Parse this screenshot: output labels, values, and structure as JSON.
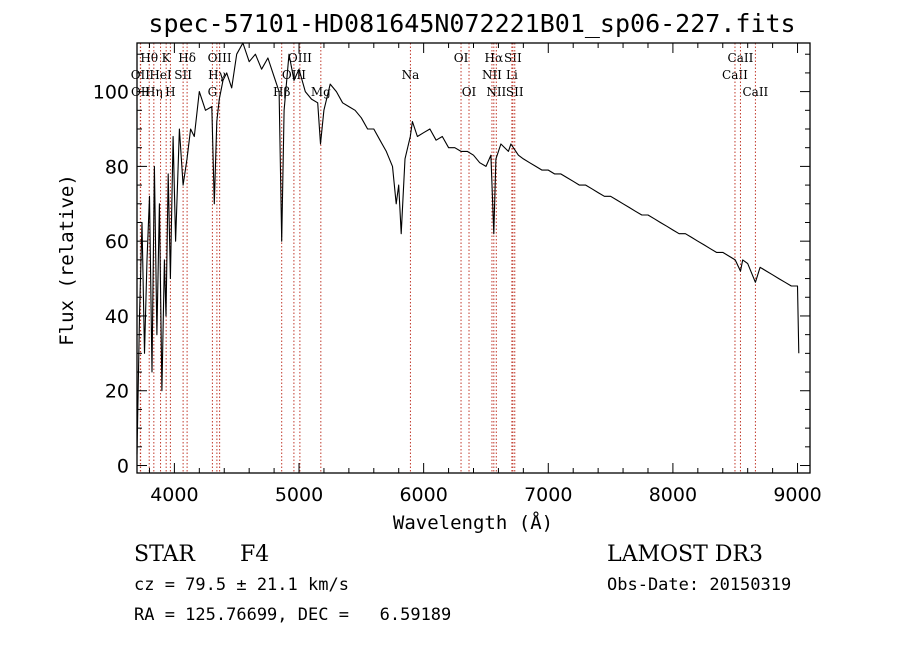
{
  "chart_data": {
    "type": "line",
    "title": "spec-57101-HD081645N072221B01_sp06-227.fits",
    "xlabel": "Wavelength (Å)",
    "ylabel": "Flux (relative)",
    "xlim": [
      3700,
      9100
    ],
    "ylim": [
      -2,
      113
    ],
    "xticks": [
      "4000",
      "5000",
      "6000",
      "7000",
      "8000",
      "9000"
    ],
    "yticks": [
      "0",
      "20",
      "40",
      "60",
      "80",
      "100"
    ],
    "series": [
      {
        "name": "flux",
        "x": [
          3700,
          3720,
          3740,
          3760,
          3780,
          3800,
          3820,
          3840,
          3860,
          3880,
          3900,
          3920,
          3933,
          3950,
          3968,
          3990,
          4010,
          4040,
          4070,
          4101,
          4130,
          4160,
          4200,
          4250,
          4300,
          4320,
          4340,
          4360,
          4390,
          4420,
          4460,
          4500,
          4550,
          4600,
          4650,
          4700,
          4750,
          4800,
          4840,
          4861,
          4880,
          4920,
          4960,
          5000,
          5050,
          5100,
          5150,
          5172,
          5200,
          5250,
          5300,
          5350,
          5400,
          5450,
          5500,
          5550,
          5600,
          5650,
          5700,
          5750,
          5780,
          5800,
          5820,
          5850,
          5893,
          5910,
          5950,
          6000,
          6050,
          6100,
          6150,
          6200,
          6250,
          6300,
          6350,
          6400,
          6450,
          6500,
          6540,
          6563,
          6580,
          6620,
          6680,
          6700,
          6760,
          6800,
          6850,
          6900,
          6950,
          7000,
          7050,
          7100,
          7150,
          7200,
          7250,
          7300,
          7350,
          7400,
          7450,
          7500,
          7550,
          7600,
          7650,
          7700,
          7750,
          7800,
          7850,
          7900,
          7950,
          8000,
          8050,
          8100,
          8150,
          8200,
          8250,
          8300,
          8350,
          8400,
          8450,
          8500,
          8542,
          8560,
          8600,
          8662,
          8700,
          8750,
          8800,
          8850,
          8900,
          8950,
          9000,
          9010
        ],
        "values": [
          3,
          40,
          65,
          30,
          55,
          72,
          25,
          80,
          35,
          70,
          20,
          55,
          40,
          78,
          50,
          88,
          60,
          90,
          75,
          82,
          90,
          88,
          100,
          95,
          96,
          70,
          92,
          98,
          103,
          105,
          101,
          110,
          113,
          108,
          110,
          106,
          109,
          104,
          100,
          60,
          95,
          110,
          103,
          106,
          100,
          98,
          97,
          86,
          95,
          102,
          100,
          97,
          96,
          95,
          93,
          90,
          90,
          87,
          84,
          80,
          70,
          75,
          62,
          82,
          88,
          92,
          88,
          89,
          90,
          87,
          88,
          85,
          85,
          84,
          84,
          83,
          81,
          80,
          83,
          62,
          82,
          86,
          84,
          86,
          83,
          82,
          81,
          80,
          79,
          79,
          78,
          78,
          77,
          76,
          75,
          75,
          74,
          73,
          72,
          72,
          71,
          70,
          69,
          68,
          67,
          67,
          66,
          65,
          64,
          63,
          62,
          62,
          61,
          60,
          59,
          58,
          57,
          57,
          56,
          55,
          52,
          55,
          54,
          49,
          53,
          52,
          51,
          50,
          49,
          48,
          48,
          30
        ]
      }
    ],
    "line_markers": [
      {
        "name": "OII",
        "wavelength": 3727,
        "row": 2
      },
      {
        "name": "OII",
        "wavelength": 3729,
        "row": 3
      },
      {
        "name": "Hθ",
        "wavelength": 3798,
        "row": 1
      },
      {
        "name": "Hη",
        "wavelength": 3835,
        "row": 3
      },
      {
        "name": "HeI",
        "wavelength": 3889,
        "row": 2
      },
      {
        "name": "K",
        "wavelength": 3934,
        "row": 1
      },
      {
        "name": "H",
        "wavelength": 3968,
        "row": 3
      },
      {
        "name": "SII",
        "wavelength": 4070,
        "row": 2
      },
      {
        "name": "Hδ",
        "wavelength": 4102,
        "row": 1
      },
      {
        "name": "G",
        "wavelength": 4305,
        "row": 3
      },
      {
        "name": "Hγ",
        "wavelength": 4341,
        "row": 2
      },
      {
        "name": "OIII",
        "wavelength": 4363,
        "row": 1
      },
      {
        "name": "Hβ",
        "wavelength": 4861,
        "row": 3
      },
      {
        "name": "OIII",
        "wavelength": 4959,
        "row": 2
      },
      {
        "name": "OIII",
        "wavelength": 5007,
        "row": 1
      },
      {
        "name": "Mg",
        "wavelength": 5175,
        "row": 3
      },
      {
        "name": "Na",
        "wavelength": 5894,
        "row": 2
      },
      {
        "name": "OI",
        "wavelength": 6300,
        "row": 1
      },
      {
        "name": "OI",
        "wavelength": 6364,
        "row": 3
      },
      {
        "name": "NII",
        "wavelength": 6548,
        "row": 2
      },
      {
        "name": "Hα",
        "wavelength": 6563,
        "row": 1
      },
      {
        "name": "NII",
        "wavelength": 6583,
        "row": 3
      },
      {
        "name": "Li",
        "wavelength": 6708,
        "row": 2
      },
      {
        "name": "SII",
        "wavelength": 6716,
        "row": 1
      },
      {
        "name": "SII",
        "wavelength": 6731,
        "row": 3
      },
      {
        "name": "CaII",
        "wavelength": 8498,
        "row": 2
      },
      {
        "name": "CaII",
        "wavelength": 8542,
        "row": 1
      },
      {
        "name": "CaII",
        "wavelength": 8662,
        "row": 3
      }
    ]
  },
  "info": {
    "class": "STAR",
    "subclass": "F4",
    "survey": "LAMOST DR3",
    "cz": "cz = 79.5 ± 21.1 km/s",
    "obs_date": "Obs-Date: 20150319",
    "radec": "RA = 125.76699, DEC =   6.59189"
  }
}
